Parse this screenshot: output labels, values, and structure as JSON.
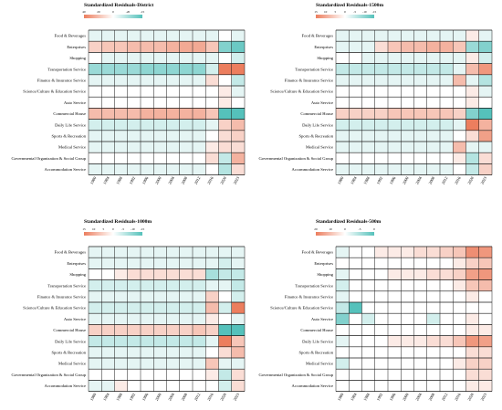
{
  "chart_data": [
    {
      "type": "heatmap",
      "title": "Standardized Residuals-District",
      "legend": {
        "ticks": [
          "40",
          "20",
          "0",
          "-20",
          "-15"
        ]
      },
      "x": [
        "1980",
        "1984",
        "1988",
        "1992",
        "1996",
        "2000",
        "2004",
        "2008",
        "2012",
        "2016",
        "2020",
        "2023"
      ],
      "y": [
        "Food & Beverages",
        "Enterprises",
        "Shopping",
        "Transportation Service",
        "Finance & Insurance Service",
        "Science/Culture & Education Service",
        "Auto Service",
        "Commercial House",
        "Daily Life Service",
        "Sports & Recreation",
        "Medical Service",
        "Governmental Organization & Social Group",
        "Accommodation Service"
      ],
      "values": [
        [
          -1,
          -1,
          -1,
          -1,
          -1,
          -1,
          -1,
          -1,
          -1,
          -1,
          0,
          -1
        ],
        [
          3,
          4,
          4,
          5,
          5,
          5,
          6,
          7,
          7,
          4,
          -8,
          -10
        ],
        [
          0,
          -1,
          -1,
          -1,
          -1,
          -1,
          -1,
          -1,
          -1,
          -1,
          0,
          -2
        ],
        [
          -6,
          -6,
          -6,
          -6,
          -7,
          -7,
          -7,
          -7,
          -7,
          -2,
          12,
          22
        ],
        [
          -1,
          -1,
          -1,
          -1,
          -1,
          -1,
          -1,
          -1,
          -1,
          2,
          0,
          -3
        ],
        [
          0,
          0,
          0,
          0,
          0,
          0,
          0,
          0,
          0,
          0,
          1,
          -1
        ],
        [
          0,
          0,
          0,
          0,
          0,
          0,
          0,
          0,
          0,
          0,
          1,
          0
        ],
        [
          5,
          5,
          5,
          5,
          6,
          6,
          6,
          6,
          6,
          4,
          -14,
          -20
        ],
        [
          -2,
          -2,
          -2,
          -2,
          -2,
          -2,
          -2,
          -2,
          -2,
          -1,
          3,
          5
        ],
        [
          -1,
          -1,
          -1,
          -1,
          -1,
          -1,
          -1,
          -1,
          -1,
          0,
          2,
          3
        ],
        [
          -1,
          -1,
          -1,
          -1,
          -1,
          -1,
          -1,
          -1,
          -1,
          1,
          2,
          2
        ],
        [
          0,
          0,
          0,
          0,
          0,
          0,
          0,
          0,
          0,
          2,
          -3,
          6
        ],
        [
          -1,
          -1,
          -1,
          -1,
          -1,
          -1,
          -1,
          -1,
          -1,
          0,
          -4,
          2
        ]
      ]
    },
    {
      "type": "heatmap",
      "title": "Standardized Residuals-1500m",
      "legend": {
        "ticks": [
          "15",
          "10",
          "5",
          "0",
          "-5",
          "-10",
          "-15"
        ]
      },
      "x": [
        "1980",
        "1984",
        "1988",
        "1992",
        "1996",
        "2000",
        "2004",
        "2008",
        "2012",
        "2016",
        "2020",
        "2023"
      ],
      "y": [
        "Food & Beverages",
        "Enterprises",
        "Shopping",
        "Transportation Service",
        "Finance & Insurance Service",
        "Science/Culture & Education Service",
        "Auto Service",
        "Commercial House",
        "Daily Life Service",
        "Sports & Recreation",
        "Medical Service",
        "Governmental Organization & Social Group",
        "Accommodation Service"
      ],
      "values": [
        [
          -1,
          -1,
          -1,
          -1,
          -1,
          -1,
          -1,
          -1,
          -1,
          -1,
          1,
          -1
        ],
        [
          -1,
          -1,
          -1,
          2,
          4,
          5,
          5,
          6,
          6,
          4,
          -6,
          -8
        ],
        [
          0,
          0,
          -1,
          -1,
          -1,
          -1,
          -1,
          -1,
          -1,
          -1,
          1,
          -2
        ],
        [
          -3,
          -3,
          -3,
          -3,
          -3,
          -3,
          -3,
          -3,
          -3,
          -1,
          5,
          9
        ],
        [
          -1,
          -1,
          -1,
          -1,
          -1,
          -1,
          -1,
          -1,
          -1,
          5,
          -1,
          -4
        ],
        [
          0,
          0,
          0,
          0,
          0,
          0,
          0,
          0,
          0,
          0,
          1,
          -1
        ],
        [
          0,
          0,
          0,
          0,
          0,
          0,
          0,
          0,
          0,
          0,
          1,
          0
        ],
        [
          3,
          3,
          3,
          3,
          4,
          4,
          4,
          4,
          4,
          3,
          -8,
          -12
        ],
        [
          -2,
          -2,
          -2,
          -2,
          -2,
          -2,
          -2,
          -2,
          -2,
          -1,
          14,
          6
        ],
        [
          -1,
          -1,
          -1,
          -1,
          -1,
          -1,
          -1,
          -1,
          -1,
          0,
          2,
          8
        ],
        [
          -1,
          -1,
          -1,
          -1,
          -1,
          -1,
          -1,
          -1,
          -1,
          5,
          -1,
          -1
        ],
        [
          0,
          0,
          0,
          0,
          0,
          0,
          0,
          0,
          0,
          1,
          -4,
          2
        ],
        [
          -1,
          -1,
          -1,
          -1,
          -1,
          -1,
          -1,
          -1,
          -1,
          0,
          -3,
          3
        ]
      ]
    },
    {
      "type": "heatmap",
      "title": "Standardized Residuals-1000m",
      "legend": {
        "ticks": [
          "15",
          "10",
          "5",
          "0",
          "-5",
          "-10",
          "-15"
        ]
      },
      "x": [
        "1980",
        "1984",
        "1988",
        "1992",
        "1996",
        "2000",
        "2004",
        "2008",
        "2012",
        "2016",
        "2020",
        "2023"
      ],
      "y": [
        "Food & Beverages",
        "Enterprises",
        "Shopping",
        "Transportation Service",
        "Finance & Insurance Service",
        "Science/Culture & Education Service",
        "Auto Service",
        "Commercial House",
        "Daily Life Service",
        "Sports & Recreation",
        "Medical Service",
        "Governmental Organization & Social Group",
        "Accommodation Service"
      ],
      "values": [
        [
          -1,
          -1,
          -1,
          -1,
          -1,
          -1,
          -1,
          -1,
          -1,
          -1,
          -1,
          -1
        ],
        [
          -1,
          -1,
          -1,
          -1,
          -1,
          -1,
          -1,
          -1,
          -1,
          -1,
          -2,
          -1
        ],
        [
          0,
          0,
          1,
          2,
          2,
          2,
          2,
          2,
          2,
          -5,
          -3,
          -3
        ],
        [
          -2,
          -2,
          -2,
          -2,
          -2,
          -2,
          -2,
          -2,
          -2,
          -1,
          -1,
          -3
        ],
        [
          -1,
          -1,
          -1,
          -1,
          -1,
          -1,
          -1,
          -1,
          -1,
          3,
          0,
          -2
        ],
        [
          -2,
          -2,
          -2,
          -2,
          -2,
          -2,
          -2,
          -2,
          -2,
          5,
          -2,
          12
        ],
        [
          -1,
          -1,
          -1,
          -1,
          -1,
          -1,
          -1,
          -1,
          -1,
          1,
          0,
          -1
        ],
        [
          3,
          3,
          3,
          3,
          3,
          3,
          3,
          3,
          4,
          3,
          -14,
          -15
        ],
        [
          -3,
          -3,
          -3,
          -3,
          -3,
          -3,
          -3,
          -3,
          -3,
          -1,
          16,
          4
        ],
        [
          -1,
          -1,
          -1,
          -1,
          -1,
          -1,
          -1,
          -1,
          -1,
          0,
          2,
          5
        ],
        [
          -1,
          -1,
          -1,
          -1,
          -1,
          -1,
          -1,
          -1,
          -1,
          4,
          -1,
          -1
        ],
        [
          0,
          0,
          0,
          0,
          0,
          0,
          0,
          0,
          0,
          1,
          -3,
          2
        ],
        [
          -1,
          -1,
          1,
          0,
          0,
          0,
          0,
          0,
          0,
          0,
          -2,
          2
        ]
      ]
    },
    {
      "type": "heatmap",
      "title": "Standardized Residuals-500m",
      "legend": {
        "ticks": [
          "20",
          "10",
          "0",
          "-5",
          "0"
        ]
      },
      "x": [
        "1980",
        "1984",
        "1988",
        "1992",
        "1996",
        "2000",
        "2004",
        "2008",
        "2012",
        "2016",
        "2020",
        "2023"
      ],
      "y": [
        "Food & Beverages",
        "Enterprises",
        "Shopping",
        "Transportation Service",
        "Finance & Insurance Service",
        "Science/Culture & Education Service",
        "Auto Service",
        "Commercial House",
        "Daily Life Service",
        "Sports & Recreation",
        "Medical Service",
        "Governmental Organization & Social Group",
        "Accommodation Service"
      ],
      "values": [
        [
          -1,
          0,
          0,
          1,
          1,
          1,
          2,
          2,
          3,
          4,
          10,
          9
        ],
        [
          0,
          0,
          0,
          0,
          0,
          0,
          0,
          0,
          0,
          1,
          3,
          4
        ],
        [
          -1,
          0,
          0,
          0,
          1,
          1,
          1,
          2,
          2,
          3,
          8,
          9
        ],
        [
          -2,
          0,
          0,
          0,
          0,
          0,
          0,
          0,
          0,
          1,
          4,
          5
        ],
        [
          -1,
          0,
          0,
          0,
          0,
          0,
          0,
          0,
          0,
          0,
          1,
          0
        ],
        [
          -3,
          -12,
          0,
          0,
          0,
          0,
          0,
          0,
          0,
          0,
          0,
          0
        ],
        [
          -8,
          0,
          -2,
          0,
          0,
          0,
          0,
          -2,
          0,
          0,
          1,
          0
        ],
        [
          0,
          0,
          0,
          0,
          0,
          0,
          0,
          0,
          0,
          0,
          1,
          1
        ],
        [
          -1,
          0,
          0,
          0,
          1,
          1,
          1,
          2,
          2,
          4,
          9,
          8
        ],
        [
          0,
          0,
          0,
          0,
          0,
          0,
          0,
          0,
          0,
          0,
          2,
          2
        ],
        [
          -2,
          0,
          0,
          0,
          0,
          0,
          0,
          0,
          0,
          1,
          3,
          3
        ],
        [
          0,
          0,
          0,
          0,
          0,
          0,
          0,
          0,
          0,
          0,
          2,
          2
        ],
        [
          0,
          0,
          0,
          0,
          0,
          0,
          0,
          0,
          0,
          0,
          1,
          1
        ]
      ]
    }
  ],
  "colors": {
    "positive": "#ec7e5e",
    "negative": "#55c1bb",
    "neutral": "#ffffff",
    "grid": "#1a1a1a"
  }
}
